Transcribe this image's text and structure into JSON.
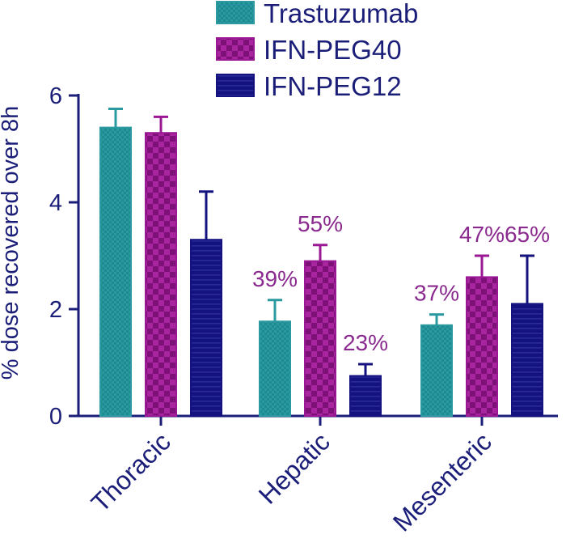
{
  "chart_data": {
    "type": "bar",
    "title": "",
    "xlabel": "",
    "ylabel": "% dose recovered over 8h",
    "ylim": [
      0,
      6
    ],
    "yticks": [
      0,
      2,
      4,
      6
    ],
    "categories": [
      "Thoracic",
      "Hepatic",
      "Mesenteric"
    ],
    "series": [
      {
        "name": "Trastuzumab",
        "color": "#2a9aa0",
        "pattern": "fine-check",
        "values": [
          5.4,
          1.77,
          1.7
        ],
        "error": [
          0.35,
          0.4,
          0.2
        ],
        "annotations": [
          "",
          "39%",
          "37%"
        ]
      },
      {
        "name": "IFN-PEG40",
        "color": "#9b1894",
        "pattern": "checkerboard",
        "values": [
          5.3,
          2.9,
          2.6
        ],
        "error": [
          0.3,
          0.3,
          0.4
        ],
        "annotations": [
          "",
          "55%",
          "47%"
        ]
      },
      {
        "name": "IFN-PEG12",
        "color": "#13127e",
        "pattern": "horizontal-stripes",
        "values": [
          3.3,
          0.75,
          2.1
        ],
        "error": [
          0.9,
          0.22,
          0.9
        ],
        "annotations": [
          "",
          "23%",
          "65%"
        ]
      }
    ],
    "axis_color": "#1b1e78",
    "annotation_color": "#8a2a8e",
    "legend_position": "top-right"
  }
}
